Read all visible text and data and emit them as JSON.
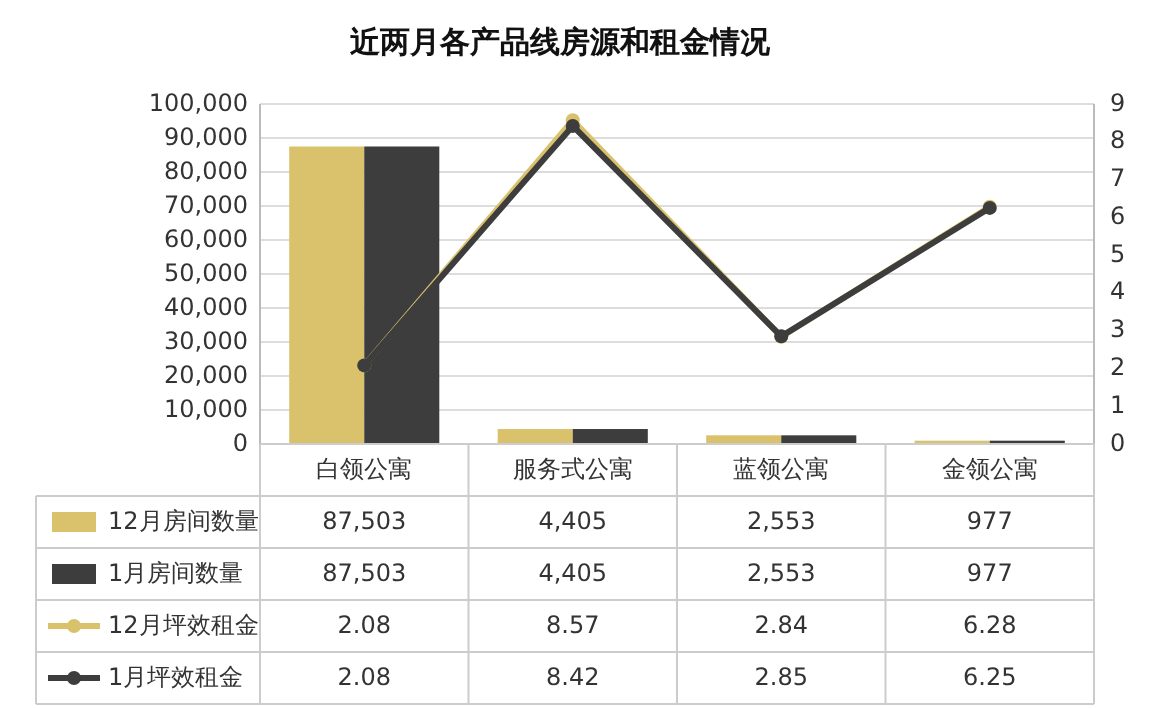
{
  "chart_data": {
    "type": "bar",
    "title": "近两月各产品线房源和租金情况",
    "categories": [
      "白领公寓",
      "服务式公寓",
      "蓝领公寓",
      "金领公寓"
    ],
    "series": [
      {
        "name": "12月房间数量",
        "color": "#d9c26b",
        "values": [
          87503,
          4405,
          2553,
          977
        ],
        "value_labels": [
          "87,503",
          "4,405",
          "2,553",
          "977"
        ]
      },
      {
        "name": "1月房间数量",
        "color": "#3d3d3d",
        "values": [
          87503,
          4405,
          2553,
          977
        ],
        "value_labels": [
          "87,503",
          "4,405",
          "2,553",
          "977"
        ]
      },
      {
        "name": "12月坪效租金",
        "type": "line",
        "axis": "y2",
        "color": "#d9c26b",
        "marker": "circle",
        "values": [
          2.08,
          8.57,
          2.84,
          6.28
        ],
        "value_labels": [
          "2.08",
          "8.57",
          "2.84",
          "6.28"
        ]
      },
      {
        "name": "1月坪效租金",
        "type": "line",
        "axis": "y2",
        "color": "#3d3d3d",
        "marker": "circle",
        "values": [
          2.08,
          8.42,
          2.85,
          6.25
        ],
        "value_labels": [
          "2.08",
          "8.42",
          "2.85",
          "6.25"
        ]
      }
    ],
    "ylim": [
      0,
      100000
    ],
    "yticks": [
      0,
      {
        "value": 10000,
        "label": "10,000"
      },
      {
        "value": 20000,
        "label": "20,000"
      },
      {
        "value": 30000,
        "label": "30,000"
      },
      {
        "value": 40000,
        "label": "40,000"
      },
      {
        "value": 50000,
        "label": "50,000"
      },
      {
        "value": 60000,
        "label": "60,000"
      },
      {
        "value": 70000,
        "label": "70,000"
      },
      {
        "value": 80000,
        "label": "80,000"
      },
      {
        "value": 90000,
        "label": "90,000"
      },
      {
        "value": 100000,
        "label": "100,000"
      }
    ],
    "y2lim": [
      0,
      9
    ],
    "y2ticks": [
      0,
      1,
      2,
      3,
      4,
      5,
      6,
      7,
      8,
      9
    ],
    "grid": "y",
    "legend": "bottom"
  }
}
